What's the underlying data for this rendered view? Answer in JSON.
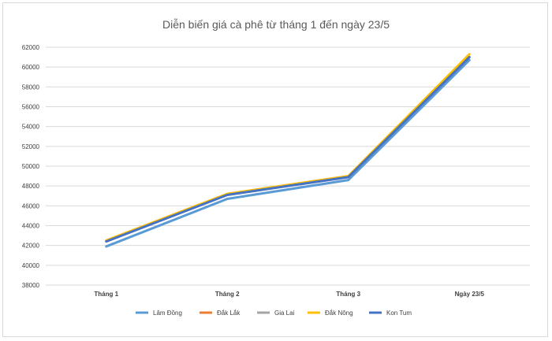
{
  "chart_data": {
    "type": "line",
    "title": "Diễn biến giá cà phê từ tháng 1 đến ngày 23/5",
    "categories": [
      "Tháng 1",
      "Tháng 2",
      "Tháng 3",
      "Ngày 23/5"
    ],
    "ylim": [
      38000,
      62000
    ],
    "yticks": [
      38000,
      40000,
      42000,
      44000,
      46000,
      48000,
      50000,
      52000,
      54000,
      56000,
      58000,
      60000,
      62000
    ],
    "grid": true,
    "legend_position": "bottom",
    "series": [
      {
        "name": "Lâm Đồng",
        "color": "#5b9bd5",
        "values": [
          41900,
          46700,
          48600,
          60700
        ]
      },
      {
        "name": "Đắk Lắk",
        "color": "#ed7d31",
        "values": [
          42500,
          47200,
          49000,
          61000
        ]
      },
      {
        "name": "Gia Lai",
        "color": "#a5a5a5",
        "values": [
          42400,
          47100,
          48900,
          61000
        ]
      },
      {
        "name": "Đắk Nông",
        "color": "#ffc000",
        "values": [
          42500,
          47200,
          49000,
          61300
        ]
      },
      {
        "name": "Kon Tum",
        "color": "#4472c4",
        "values": [
          42400,
          47100,
          48900,
          61000
        ]
      }
    ]
  }
}
